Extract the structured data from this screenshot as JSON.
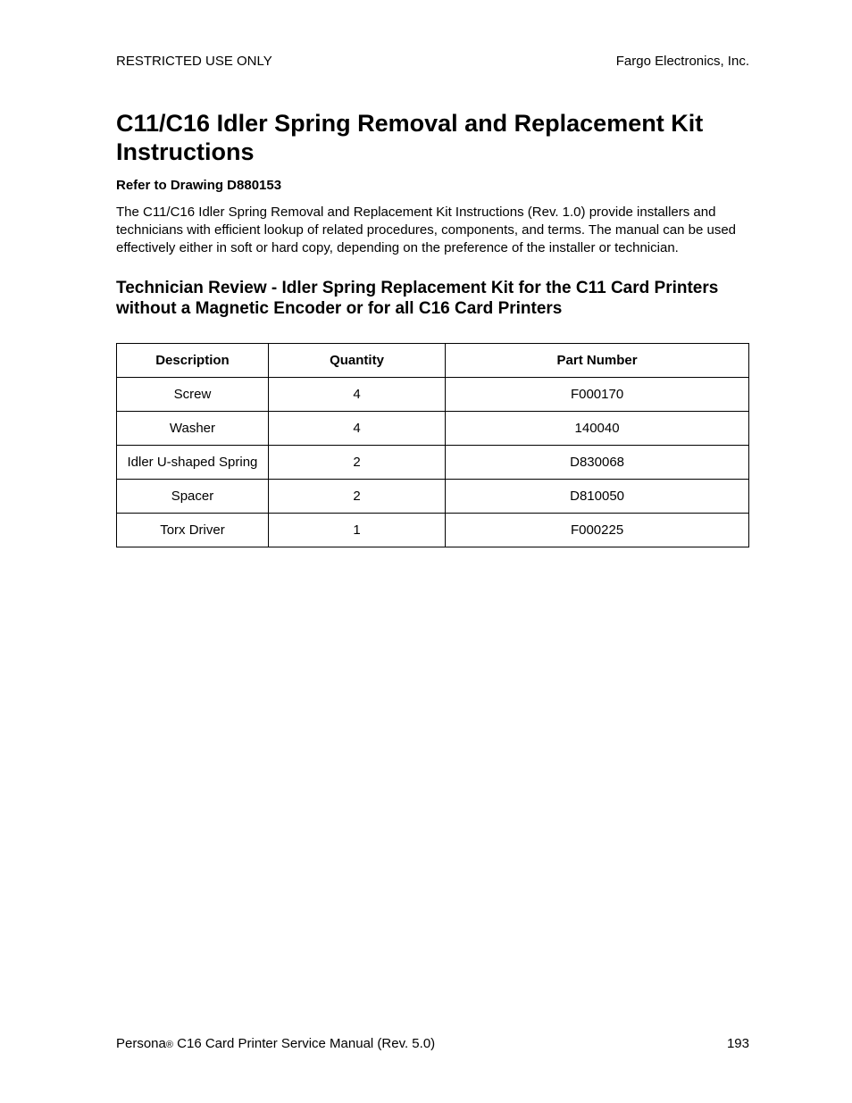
{
  "header": {
    "left": "RESTRICTED USE ONLY",
    "right": "Fargo Electronics, Inc."
  },
  "main_title": "C11/C16 Idler Spring Removal and Replacement Kit Instructions",
  "subtitle": "Refer to Drawing D880153",
  "body_text": "The C11/C16 Idler Spring Removal and Replacement Kit Instructions (Rev. 1.0) provide installers and technicians with efficient lookup of related procedures, components, and terms. The manual can be used effectively either in soft or hard copy, depending on the preference of the installer or technician.",
  "section_heading": "Technician Review - Idler Spring Replacement Kit for the C11 Card Printers without a Magnetic Encoder or for all C16 Card Printers",
  "table": {
    "columns": [
      "Description",
      "Quantity",
      "Part Number"
    ],
    "rows": [
      [
        "Screw",
        "4",
        "F000170"
      ],
      [
        "Washer",
        "4",
        "140040"
      ],
      [
        "Idler U-shaped Spring",
        "2",
        "D830068"
      ],
      [
        "Spacer",
        "2",
        "D810050"
      ],
      [
        "Torx Driver",
        "1",
        "F000225"
      ]
    ]
  },
  "footer": {
    "product": "Persona",
    "reg": "®",
    "rest": " C16 Card Printer Service Manual (Rev. 5.0)",
    "page": "193"
  }
}
